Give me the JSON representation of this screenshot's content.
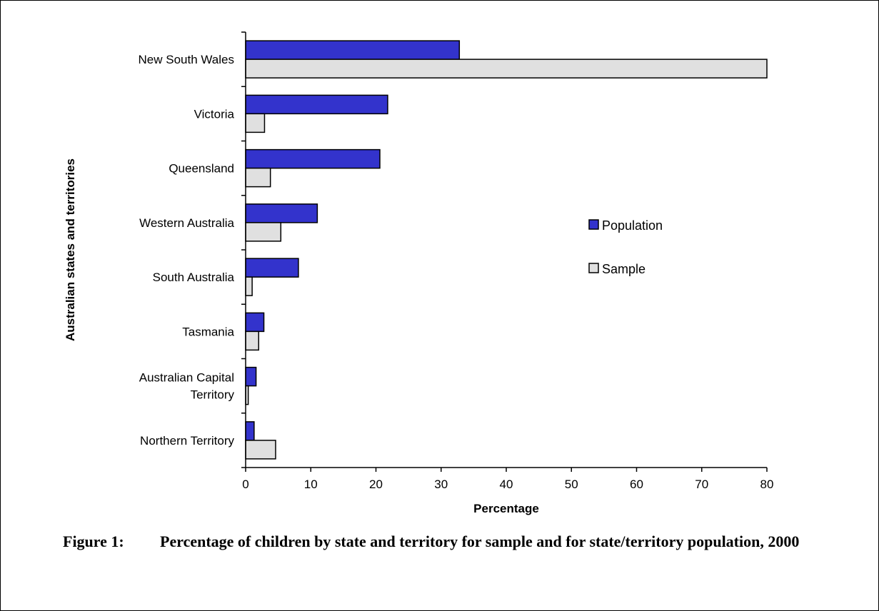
{
  "chart_data": {
    "type": "bar",
    "orientation": "horizontal",
    "categories": [
      [
        "New South Wales"
      ],
      [
        "Victoria"
      ],
      [
        "Queensland"
      ],
      [
        "Western Australia"
      ],
      [
        "South Australia"
      ],
      [
        "Tasmania"
      ],
      [
        "Australian Capital",
        "Territory"
      ],
      [
        "Northern Territory"
      ]
    ],
    "series": [
      {
        "name": "Population",
        "color": "#3333cc",
        "values": [
          32.8,
          21.8,
          20.6,
          11.0,
          8.1,
          2.8,
          1.6,
          1.3
        ]
      },
      {
        "name": "Sample",
        "color": "#e0e0e0",
        "values": [
          80.0,
          2.9,
          3.8,
          5.4,
          1.0,
          2.0,
          0.4,
          4.6
        ]
      }
    ],
    "xlabel": "Percentage",
    "ylabel": "Australian states and territories",
    "xlim": [
      0,
      80
    ],
    "xticks": [
      0,
      10,
      20,
      30,
      40,
      50,
      60,
      70,
      80
    ],
    "grid": false,
    "legend_position": "right"
  },
  "caption": {
    "number": "Figure 1:",
    "text": "Percentage of children by state and territory for sample and for state/territory population, 2000"
  }
}
